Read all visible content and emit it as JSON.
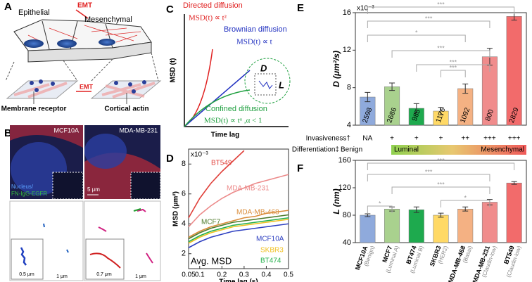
{
  "panel_labels": [
    "A",
    "B",
    "C",
    "D",
    "E",
    "F"
  ],
  "panel_a": {
    "left": "Epithelial",
    "emt_top": "EMT",
    "right": "Mesenchymal",
    "emt_bottom": "EMT",
    "receptor": "Membrane receptor",
    "actin": "Cortical actin"
  },
  "panel_b": {
    "left_title": "MCF10A",
    "right_title": "MDA-MB-231",
    "legend_nucleus": "Nucleus/",
    "legend_probe": "FN-IgG-EGFR",
    "scale_image": "5 μm",
    "scale_left_inset": "0.5 μm",
    "scale_left": "1 μm",
    "scale_right_inset": "0.7 μm",
    "scale_right": "1 μm"
  },
  "panel_c": {
    "directed": "Directed diffusion",
    "directed_eq": "MSD(t) ∝ t²",
    "brownian": "Brownian diffusion",
    "brownian_eq": "MSD(t) ∝ t",
    "confined": "Confined diffusion",
    "confined_eq": "MSD(t) ∝ tᵅ ,α < 1",
    "y_label": "MSD (t)",
    "x_label": "Time lag",
    "d": "D",
    "l": "L"
  },
  "chart_data": [
    {
      "type": "bar",
      "y_label": "D (μm²/s)",
      "multiplier": "x10⁻³",
      "values": [
        7.0,
        8.1,
        5.8,
        5.5,
        7.9,
        11.3,
        15.6
      ],
      "errors": [
        0.5,
        0.4,
        0.5,
        0.4,
        0.5,
        0.9,
        0.4
      ],
      "counts": [
        2598,
        2686,
        985,
        1176,
        1092,
        800,
        2829
      ],
      "colors": [
        "#8faadc",
        "#a9d18e",
        "#1eaa4e",
        "#ffd966",
        "#f4b183",
        "#f08c8c",
        "#f26b6b"
      ],
      "ylim": [
        4,
        16
      ],
      "yticks": [
        4,
        8,
        12,
        16
      ],
      "significance": [
        "***",
        "***",
        "*",
        "***",
        "***",
        "***"
      ],
      "invasiveness_label": "Invasiveness†",
      "invasiveness": [
        "NA",
        "+",
        "+",
        "+",
        "++",
        "+++",
        "+++"
      ],
      "differentiation_label": "Differentiation‡",
      "differentiation": [
        "Benign",
        "Luminal",
        "Mesenchymal"
      ]
    },
    {
      "type": "line",
      "y_label": "MSD (μm²)",
      "x_label": "Time lag (s)",
      "multiplier": "x10⁻³",
      "annotation": "Avg. MSD",
      "x": [
        0.05,
        0.1,
        0.15,
        0.2,
        0.25,
        0.3,
        0.35,
        0.4,
        0.45,
        0.5
      ],
      "xlim": [
        0.05,
        0.5
      ],
      "xticks": [
        0.05,
        0.1,
        0.2,
        0.3,
        0.4,
        0.5
      ],
      "ylim": [
        1,
        9
      ],
      "yticks": [
        2,
        4,
        6,
        8
      ],
      "series": [
        {
          "name": "BT549",
          "color": "#e0403a",
          "values": [
            4.4,
            5.7,
            6.7,
            7.5,
            8.2,
            8.9,
            null,
            null,
            null,
            null
          ]
        },
        {
          "name": "MDA-MB-231",
          "color": "#ec8a8a",
          "values": [
            3.8,
            4.6,
            5.2,
            5.7,
            6.1,
            6.4,
            6.7,
            6.9,
            7.1,
            7.3
          ]
        },
        {
          "name": "MDA-MB-468",
          "color": "#d98c3a",
          "values": [
            3.1,
            3.5,
            3.8,
            4.0,
            4.2,
            4.4,
            4.5,
            4.7,
            4.8,
            4.9
          ]
        },
        {
          "name": "MCF7",
          "color": "#4c7a2a",
          "values": [
            3.0,
            3.4,
            3.7,
            3.9,
            4.1,
            4.2,
            4.3,
            4.4,
            4.5,
            4.6
          ]
        },
        {
          "name": "MCF10A",
          "color": "#2d3fc0",
          "values": [
            2.4,
            2.8,
            3.1,
            3.3,
            3.5,
            3.6,
            3.7,
            3.8,
            3.9,
            4.0
          ]
        },
        {
          "name": "SKBR3",
          "color": "#f0c020",
          "values": [
            2.7,
            3.1,
            3.4,
            3.6,
            3.8,
            3.9,
            4.0,
            4.1,
            4.2,
            4.3
          ]
        },
        {
          "name": "BT474",
          "color": "#22b04a",
          "values": [
            2.8,
            3.2,
            3.5,
            3.7,
            3.9,
            4.0,
            4.1,
            4.2,
            4.3,
            4.4
          ]
        }
      ]
    },
    {
      "type": "bar",
      "y_label": "L (nm)",
      "categories": [
        "MCF10A",
        "MCF7",
        "BT474",
        "SKBR3",
        "MDA-MB-468",
        "MDA-MB-231",
        "BT549"
      ],
      "subtitles": [
        "(Benign)",
        "(Luminal A)",
        "(Luminal B)",
        "(HER2)",
        "(Basal)",
        "(Claudin-low)",
        "(Claudin-low)"
      ],
      "values": [
        80,
        89,
        88,
        80,
        89,
        99,
        127
      ],
      "errors": [
        2,
        3,
        4,
        3,
        3,
        4,
        2
      ],
      "colors": [
        "#8faadc",
        "#a9d18e",
        "#1eaa4e",
        "#ffd966",
        "#f4b183",
        "#f08c8c",
        "#f26b6b"
      ],
      "ylim": [
        40,
        160
      ],
      "yticks": [
        40,
        80,
        120,
        160
      ],
      "significance": [
        "***",
        "***",
        "***",
        "*",
        "*"
      ]
    }
  ]
}
